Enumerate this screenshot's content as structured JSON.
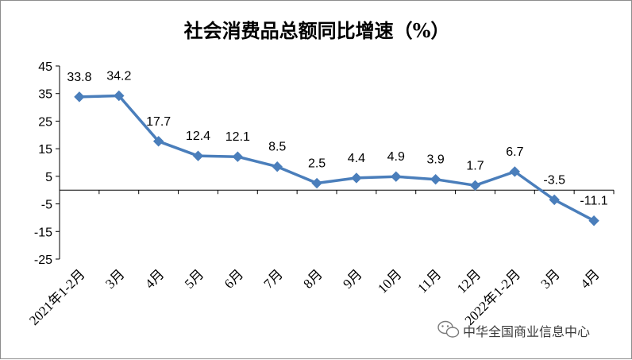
{
  "chart_data": {
    "type": "line",
    "title": "社会消费品总额同比增速（%）",
    "xlabel": "",
    "ylabel": "",
    "categories": [
      "2021年1-2月",
      "3月",
      "4月",
      "5月",
      "6月",
      "7月",
      "8月",
      "9月",
      "10月",
      "11月",
      "12月",
      "2022年1-2月",
      "3月",
      "4月"
    ],
    "series": [
      {
        "values": [
          33.8,
          34.2,
          17.7,
          12.4,
          12.1,
          8.5,
          2.5,
          4.4,
          4.9,
          3.9,
          1.7,
          6.7,
          -3.5,
          -11.1
        ]
      }
    ],
    "data_labels": [
      "33.8",
      "34.2",
      "17.7",
      "12.4",
      "12.1",
      "8.5",
      "2.5",
      "4.4",
      "4.9",
      "3.9",
      "1.7",
      "6.7",
      "-3.5",
      "-11.1"
    ],
    "yticks": [
      "45",
      "35",
      "25",
      "15",
      "5",
      "-5",
      "-15",
      "-25"
    ],
    "yticks_values": [
      45,
      35,
      25,
      15,
      5,
      -5,
      -15,
      -25
    ],
    "ylim": [
      -25,
      45
    ],
    "grid": false,
    "legend": "none",
    "series_color": "#4a7ebb",
    "axis_color": "#000000"
  },
  "watermark": {
    "text": "中华全国商业信息中心",
    "icon": "wechat-icon"
  }
}
